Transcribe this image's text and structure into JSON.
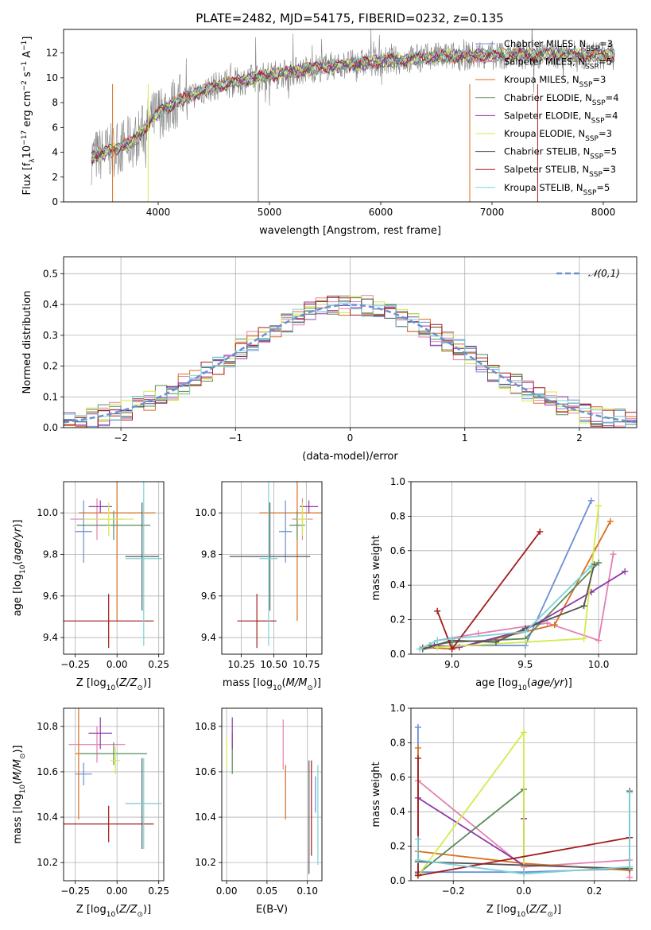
{
  "figure": {
    "title": "PLATE=2482, MJD=54175, FIBERID=0232, z=0.135"
  },
  "chart_data": [
    {
      "id": "spectrum",
      "type": "line",
      "title": "PLATE=2482, MJD=54175, FIBERID=0232, z=0.135",
      "xlabel": "wavelength [Angstrom, rest frame]",
      "ylabel": "Flux [f_λ10^-17 erg cm^-2 s^-1 A^-1]",
      "xlim": [
        3150,
        8300
      ],
      "ylim": [
        0,
        13.9
      ],
      "xticks": [
        4000,
        5000,
        6000,
        7000,
        8000
      ],
      "yticks": [
        0,
        2,
        4,
        6,
        8,
        10,
        12
      ],
      "grid": false,
      "legend_position": "top-right",
      "data_color": "#808080",
      "continuum_x": [
        3400,
        3600,
        3800,
        3900,
        4000,
        4200,
        4500,
        5000,
        5500,
        6000,
        6500,
        7000,
        7500,
        8000,
        8100
      ],
      "continuum_y": [
        3.6,
        4.2,
        5.0,
        6.2,
        7.2,
        8.2,
        9.3,
        10.2,
        10.9,
        11.3,
        11.7,
        11.8,
        11.9,
        11.8,
        11.8
      ],
      "series": [
        {
          "name": "Chabrier MILES, N_SSP=3",
          "color": "#6b8fd6"
        },
        {
          "name": "Salpeter MILES, N_SSP=5",
          "color": "#e37fb2"
        },
        {
          "name": "Kroupa MILES, N_SSP=3",
          "color": "#d96f1f"
        },
        {
          "name": "Chabrier ELODIE, N_SSP=4",
          "color": "#5a8a5a"
        },
        {
          "name": "Salpeter ELODIE, N_SSP=4",
          "color": "#8e3aa8"
        },
        {
          "name": "Kroupa ELODIE, N_SSP=3",
          "color": "#d4ea4a"
        },
        {
          "name": "Chabrier STELIB, N_SSP=5",
          "color": "#555555"
        },
        {
          "name": "Salpeter STELIB, N_SSP=3",
          "color": "#a31c1c"
        },
        {
          "name": "Kroupa STELIB, N_SSP=5",
          "color": "#79d3d6"
        }
      ]
    },
    {
      "id": "residuals",
      "type": "line",
      "xlabel": "(data-model)/error",
      "ylabel": "Normed distribution",
      "xlim": [
        -2.5,
        2.5
      ],
      "ylim": [
        0,
        0.555
      ],
      "xticks": [
        -2,
        -1,
        0,
        1,
        2
      ],
      "xtick_labels": [
        "−2",
        "−1",
        "0",
        "1",
        "2"
      ],
      "yticks": [
        0.0,
        0.1,
        0.2,
        0.3,
        0.4,
        0.5
      ],
      "grid": true,
      "legend_position": "top-right",
      "legend_label": "𝒩(0,1)",
      "gaussian": {
        "mean": 0,
        "sigma": 1,
        "color": "#6b8fd6"
      },
      "bin_width": 0.1
    },
    {
      "id": "age_vs_Z",
      "type": "scatter",
      "xlabel": "Z [log10(Z/Z⊙)]",
      "ylabel": "age [log10(age/yr)]",
      "xlim": [
        -0.32,
        0.28
      ],
      "ylim": [
        9.32,
        10.15
      ],
      "xticks": [
        -0.25,
        0.0,
        0.25
      ],
      "xtick_labels": [
        "−0.25",
        "0.00",
        "0.25"
      ],
      "yticks": [
        9.4,
        9.6,
        9.8,
        10.0
      ],
      "grid": true,
      "points": [
        {
          "color": "#6b8fd6",
          "x": -0.2,
          "y": 9.91,
          "xerr": 0.05,
          "yerr": 0.15
        },
        {
          "color": "#e37fb2",
          "x": -0.12,
          "y": 9.97,
          "xerr": 0.16,
          "yerr": 0.1
        },
        {
          "color": "#d96f1f",
          "x": 0.0,
          "y": 10.0,
          "xerr": 0.23,
          "yerr": 0.52
        },
        {
          "color": "#5a8a5a",
          "x": -0.02,
          "y": 9.94,
          "xerr": 0.22,
          "yerr": 0.07
        },
        {
          "color": "#8e3aa8",
          "x": -0.1,
          "y": 10.03,
          "xerr": 0.07,
          "yerr": 0.03
        },
        {
          "color": "#d4ea4a",
          "x": -0.05,
          "y": 9.97,
          "xerr": 0.15,
          "yerr": 0.08
        },
        {
          "color": "#555555",
          "x": 0.15,
          "y": 9.79,
          "xerr": 0.1,
          "yerr": 0.26
        },
        {
          "color": "#a31c1c",
          "x": -0.05,
          "y": 9.48,
          "xerr": 0.27,
          "yerr": 0.13
        },
        {
          "color": "#79d3d6",
          "x": 0.16,
          "y": 9.78,
          "xerr": 0.11,
          "yerr": 0.42
        }
      ]
    },
    {
      "id": "age_vs_mass",
      "type": "scatter",
      "xlabel": "mass [log10(M/M⊙)]",
      "xlim": [
        10.1,
        10.87
      ],
      "ylim": [
        9.32,
        10.15
      ],
      "xticks": [
        10.25,
        10.5,
        10.75
      ],
      "xtick_labels": [
        "10.25",
        "10.50",
        "10.75"
      ],
      "yticks": [
        9.4,
        9.6,
        9.8,
        10.0
      ],
      "grid": true,
      "points": [
        {
          "color": "#6b8fd6",
          "x": 10.59,
          "y": 9.91,
          "xerr": 0.05,
          "yerr": 0.15
        },
        {
          "color": "#e37fb2",
          "x": 10.72,
          "y": 9.97,
          "xerr": 0.08,
          "yerr": 0.1
        },
        {
          "color": "#d96f1f",
          "x": 10.68,
          "y": 10.0,
          "xerr": 0.29,
          "yerr": 0.52
        },
        {
          "color": "#5a8a5a",
          "x": 10.68,
          "y": 9.94,
          "xerr": 0.06,
          "yerr": 0.07
        },
        {
          "color": "#8e3aa8",
          "x": 10.77,
          "y": 10.03,
          "xerr": 0.07,
          "yerr": 0.03
        },
        {
          "color": "#d4ea4a",
          "x": 10.72,
          "y": 9.97,
          "xerr": 0.04,
          "yerr": 0.08
        },
        {
          "color": "#555555",
          "x": 10.47,
          "y": 9.79,
          "xerr": 0.31,
          "yerr": 0.26
        },
        {
          "color": "#a31c1c",
          "x": 10.37,
          "y": 9.48,
          "xerr": 0.15,
          "yerr": 0.13
        },
        {
          "color": "#79d3d6",
          "x": 10.46,
          "y": 9.78,
          "xerr": 0.07,
          "yerr": 0.42
        }
      ]
    },
    {
      "id": "massweight_vs_age",
      "type": "line",
      "xlabel": "age [log10(age/yr)]",
      "ylabel": "mass weight",
      "xlim": [
        8.72,
        10.26
      ],
      "ylim": [
        0,
        1.0
      ],
      "xticks": [
        9.0,
        9.5,
        10.0
      ],
      "yticks": [
        0.0,
        0.2,
        0.4,
        0.6,
        0.8,
        1.0
      ],
      "grid": true,
      "series": [
        {
          "color": "#6b8fd6",
          "x": [
            8.8,
            9.0,
            9.5,
            9.95
          ],
          "y": [
            0.03,
            0.05,
            0.05,
            0.89
          ]
        },
        {
          "color": "#e37fb2",
          "x": [
            8.9,
            9.18,
            9.65,
            10.0,
            10.1
          ],
          "y": [
            0.08,
            0.12,
            0.18,
            0.08,
            0.58
          ]
        },
        {
          "color": "#d96f1f",
          "x": [
            8.8,
            9.0,
            9.7,
            10.08
          ],
          "y": [
            0.04,
            0.03,
            0.17,
            0.77
          ]
        },
        {
          "color": "#5a8a5a",
          "x": [
            8.85,
            9.0,
            9.5,
            10.0
          ],
          "y": [
            0.05,
            0.07,
            0.09,
            0.53
          ]
        },
        {
          "color": "#8e3aa8",
          "x": [
            8.88,
            9.05,
            9.5,
            9.95,
            10.18
          ],
          "y": [
            0.05,
            0.04,
            0.14,
            0.36,
            0.48
          ]
        },
        {
          "color": "#d4ea4a",
          "x": [
            8.9,
            9.5,
            9.9,
            10.0
          ],
          "y": [
            0.04,
            0.07,
            0.09,
            0.86
          ]
        },
        {
          "color": "#555555",
          "x": [
            8.8,
            9.0,
            9.3,
            9.5,
            9.9,
            9.97
          ],
          "y": [
            0.03,
            0.08,
            0.07,
            0.15,
            0.28,
            0.52
          ]
        },
        {
          "color": "#a31c1c",
          "x": [
            8.9,
            9.0,
            9.6
          ],
          "y": [
            0.25,
            0.03,
            0.71
          ]
        },
        {
          "color": "#79d3d6",
          "x": [
            8.78,
            8.9,
            9.0,
            9.5,
            9.95
          ],
          "y": [
            0.03,
            0.08,
            0.09,
            0.13,
            0.51
          ]
        }
      ]
    },
    {
      "id": "mass_vs_Z",
      "type": "scatter",
      "xlabel": "Z [log10(Z/Z⊙)]",
      "ylabel": "mass [log10(M/M⊙)]",
      "xlim": [
        -0.32,
        0.28
      ],
      "ylim": [
        10.12,
        10.88
      ],
      "xticks": [
        -0.25,
        0.0,
        0.25
      ],
      "xtick_labels": [
        "−0.25",
        "0.00",
        "0.25"
      ],
      "yticks": [
        10.2,
        10.4,
        10.6,
        10.8
      ],
      "grid": true,
      "points": [
        {
          "color": "#6b8fd6",
          "x": -0.2,
          "y": 10.59,
          "xerr": 0.05,
          "yerr": 0.05
        },
        {
          "color": "#e37fb2",
          "x": -0.12,
          "y": 10.72,
          "xerr": 0.17,
          "yerr": 0.08
        },
        {
          "color": "#d96f1f",
          "x": -0.23,
          "y": 10.68,
          "xerr": 0.02,
          "yerr": 0.29
        },
        {
          "color": "#5a8a5a",
          "x": -0.02,
          "y": 10.68,
          "xerr": 0.2,
          "yerr": 0.05
        },
        {
          "color": "#8e3aa8",
          "x": -0.1,
          "y": 10.77,
          "xerr": 0.07,
          "yerr": 0.07
        },
        {
          "color": "#d4ea4a",
          "x": -0.01,
          "y": 10.65,
          "xerr": 0.03,
          "yerr": 0.06
        },
        {
          "color": "#555555",
          "x": 0.15,
          "y": 10.46,
          "xerr": 0.1,
          "yerr": 0.2
        },
        {
          "color": "#a31c1c",
          "x": -0.05,
          "y": 10.37,
          "xerr": 0.27,
          "yerr": 0.08
        },
        {
          "color": "#79d3d6",
          "x": 0.16,
          "y": 10.46,
          "xerr": 0.11,
          "yerr": 0.2
        }
      ]
    },
    {
      "id": "mass_vs_EBV",
      "type": "scatter",
      "xlabel": "E(B-V)",
      "xlim": [
        -0.006,
        0.118
      ],
      "ylim": [
        10.12,
        10.88
      ],
      "xticks": [
        0.0,
        0.05,
        0.1
      ],
      "xtick_labels": [
        "0.00",
        "0.05",
        "0.10"
      ],
      "yticks": [
        10.2,
        10.4,
        10.6,
        10.8
      ],
      "grid": true,
      "points": [
        {
          "color": "#6b8fd6",
          "x": 0.11,
          "y": 10.5,
          "yerr": 0.08
        },
        {
          "color": "#e37fb2",
          "x": 0.07,
          "y": 10.72,
          "yerr": 0.11
        },
        {
          "color": "#d96f1f",
          "x": 0.073,
          "y": 10.51,
          "yerr": 0.12
        },
        {
          "color": "#5a8a5a",
          "x": 0.007,
          "y": 10.68,
          "yerr": 0.09
        },
        {
          "color": "#8e3aa8",
          "x": 0.007,
          "y": 10.77,
          "yerr": 0.07
        },
        {
          "color": "#d4ea4a",
          "x": 0.0,
          "y": 10.68,
          "yerr": 0.07
        },
        {
          "color": "#555555",
          "x": 0.102,
          "y": 10.4,
          "yerr": 0.25
        },
        {
          "color": "#a31c1c",
          "x": 0.105,
          "y": 10.44,
          "yerr": 0.21
        },
        {
          "color": "#79d3d6",
          "x": 0.113,
          "y": 10.41,
          "yerr": 0.22
        }
      ]
    },
    {
      "id": "massweight_vs_Z",
      "type": "line",
      "xlabel": "Z [log10(Z/Z⊙)]",
      "ylabel": "mass weight",
      "xlim": [
        -0.32,
        0.32
      ],
      "ylim": [
        0,
        1.0
      ],
      "xticks": [
        -0.2,
        0.0,
        0.2
      ],
      "xtick_labels": [
        "−0.2",
        "0.0",
        "0.2"
      ],
      "yticks": [
        0.0,
        0.2,
        0.4,
        0.6,
        0.8,
        1.0
      ],
      "grid": true,
      "series": [
        {
          "color": "#6b8fd6",
          "x": [
            -0.3,
            -0.3,
            0.0,
            0.3
          ],
          "y": [
            0.89,
            0.05,
            0.05,
            0.07
          ]
        },
        {
          "color": "#e37fb2",
          "x": [
            -0.3,
            0.0,
            0.3,
            0.3
          ],
          "y": [
            0.58,
            0.08,
            0.12,
            0.02
          ]
        },
        {
          "color": "#d96f1f",
          "x": [
            -0.3,
            -0.3,
            0.0,
            0.3
          ],
          "y": [
            0.77,
            0.17,
            0.1,
            0.06
          ]
        },
        {
          "color": "#5a8a5a",
          "x": [
            -0.3,
            0.0,
            0.0
          ],
          "y": [
            0.04,
            0.53,
            0.09
          ]
        },
        {
          "color": "#8e3aa8",
          "x": [
            -0.3,
            -0.3,
            0.0,
            0.0
          ],
          "y": [
            0.05,
            0.48,
            0.09,
            0.36
          ]
        },
        {
          "color": "#d4ea4a",
          "x": [
            -0.3,
            0.0,
            0.0
          ],
          "y": [
            0.03,
            0.86,
            0.09
          ]
        },
        {
          "color": "#555555",
          "x": [
            -0.3,
            0.3,
            0.3
          ],
          "y": [
            0.11,
            0.07,
            0.52
          ]
        },
        {
          "color": "#a31c1c",
          "x": [
            -0.3,
            -0.3,
            0.3
          ],
          "y": [
            0.71,
            0.03,
            0.25
          ]
        },
        {
          "color": "#79d3d6",
          "x": [
            -0.3,
            -0.3,
            0.0,
            0.3,
            0.3
          ],
          "y": [
            0.24,
            0.12,
            0.04,
            0.08,
            0.51
          ]
        }
      ]
    }
  ]
}
